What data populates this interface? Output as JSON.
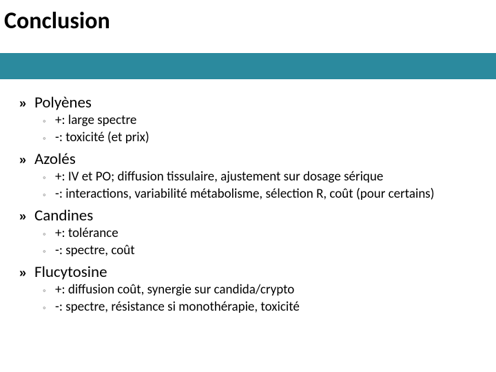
{
  "colors": {
    "band": "#2b8a9e",
    "bullet_main": "#000000",
    "bullet_sub": "#8a8a8a",
    "text": "#000000",
    "background": "#ffffff"
  },
  "title": "Conclusion",
  "glyphs": {
    "main_bullet": "»",
    "sub_bullet": "◦"
  },
  "items": [
    {
      "heading": "Polyènes",
      "subs": [
        "+: large spectre",
        "-: toxicité (et prix)"
      ]
    },
    {
      "heading": "Azolés",
      "subs": [
        "+: IV et PO; diffusion tissulaire, ajustement sur dosage sérique",
        "-: interactions, variabilité métabolisme, sélection R, coût (pour certains)"
      ]
    },
    {
      "heading": "Candines",
      "subs": [
        "+: tolérance",
        "-: spectre, coût"
      ]
    },
    {
      "heading": "Flucytosine",
      "subs": [
        "+: diffusion coût, synergie sur candida/crypto",
        "-: spectre, résistance si monothérapie, toxicité"
      ]
    }
  ]
}
